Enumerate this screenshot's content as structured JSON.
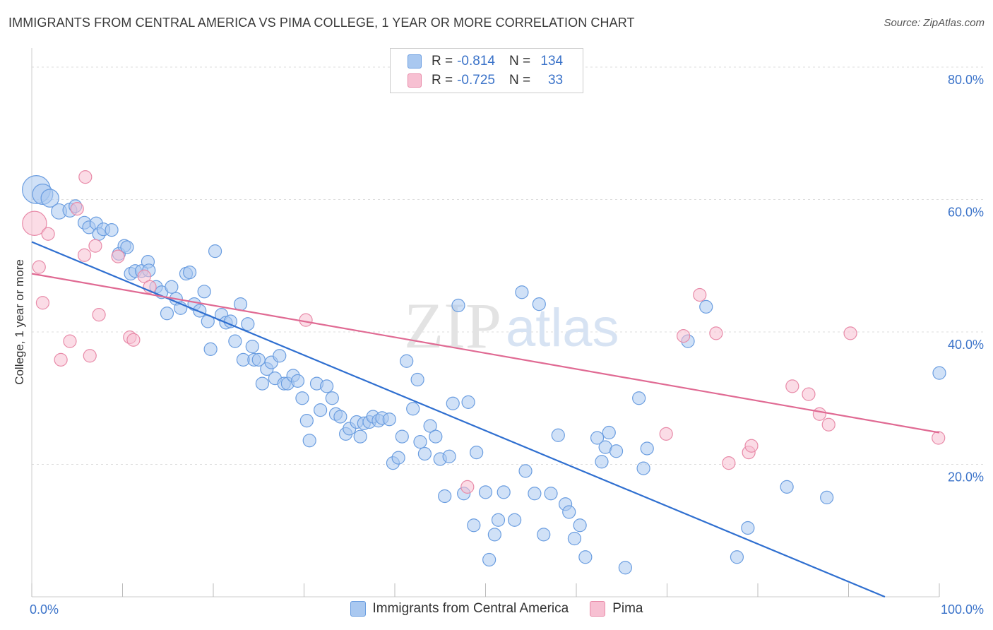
{
  "title": "IMMIGRANTS FROM CENTRAL AMERICA VS PIMA COLLEGE, 1 YEAR OR MORE CORRELATION CHART",
  "source": "Source: ZipAtlas.com",
  "watermark": {
    "zip": "ZIP",
    "atlas": "atlas"
  },
  "legend": {
    "rows": [
      {
        "r_label": "R =",
        "r_value": "-0.814",
        "n_label": "N =",
        "n_value": "134"
      },
      {
        "r_label": "R =",
        "r_value": "-0.725",
        "n_label": "N =",
        "n_value": "33"
      }
    ]
  },
  "bottom_legend": [
    "Immigrants from Central America",
    "Pima"
  ],
  "colors": {
    "blue_fill": "#a9c8f0",
    "blue_stroke": "#6a9de0",
    "blue_line": "#2f6fd0",
    "pink_fill": "#f7c0d2",
    "pink_stroke": "#e88aa8",
    "pink_line": "#e06a93",
    "tick_text": "#3b73c9",
    "grid": "#dddddd"
  },
  "chart_data": {
    "type": "scatter",
    "title": "IMMIGRANTS FROM CENTRAL AMERICA VS PIMA COLLEGE, 1 YEAR OR MORE CORRELATION CHART",
    "xlabel": "",
    "ylabel": "College, 1 year or more",
    "xlim": [
      0,
      100
    ],
    "ylim": [
      0,
      80
    ],
    "x_ticks": [
      "0.0%",
      "100.0%"
    ],
    "y_ticks": [
      "20.0%",
      "40.0%",
      "60.0%",
      "80.0%"
    ],
    "grid": true,
    "legend_position": "top-center",
    "series": [
      {
        "name": "Immigrants from Central America",
        "color": "#a9c8f0",
        "trend": {
          "x0": 0,
          "y0": 53.6,
          "x1": 94,
          "y1": 0
        },
        "points": [
          [
            0.5,
            61.5,
            2.2
          ],
          [
            1.2,
            60.8,
            1.6
          ],
          [
            2.0,
            60.2,
            1.4
          ],
          [
            3.0,
            58.2,
            1.2
          ],
          [
            4.2,
            58.4,
            1.1
          ],
          [
            4.8,
            59.0,
            1.0
          ],
          [
            5.8,
            56.5,
            1.0
          ],
          [
            6.3,
            55.8,
            1.0
          ],
          [
            7.1,
            56.4,
            1.0
          ],
          [
            7.4,
            54.8,
            1.0
          ],
          [
            7.9,
            55.5,
            1.0
          ],
          [
            8.8,
            55.4,
            1.0
          ],
          [
            9.6,
            51.8,
            1.0
          ],
          [
            10.2,
            53.0,
            1.0
          ],
          [
            10.5,
            52.8,
            1.0
          ],
          [
            10.9,
            48.8,
            1.0
          ],
          [
            11.4,
            49.2,
            1.0
          ],
          [
            12.1,
            49.2,
            1.0
          ],
          [
            12.8,
            50.6,
            1.0
          ],
          [
            12.9,
            49.3,
            1.0
          ],
          [
            13.7,
            46.8,
            1.0
          ],
          [
            14.3,
            46.0,
            1.0
          ],
          [
            14.9,
            42.8,
            1.0
          ],
          [
            15.4,
            46.8,
            1.0
          ],
          [
            15.9,
            45.0,
            1.0
          ],
          [
            16.4,
            43.6,
            1.0
          ],
          [
            17.0,
            48.8,
            1.0
          ],
          [
            17.4,
            49.0,
            1.0
          ],
          [
            17.9,
            44.2,
            1.0
          ],
          [
            18.5,
            43.2,
            1.0
          ],
          [
            19.0,
            46.1,
            1.0
          ],
          [
            19.4,
            41.6,
            1.0
          ],
          [
            19.7,
            37.4,
            1.0
          ],
          [
            20.2,
            52.2,
            1.0
          ],
          [
            20.9,
            42.6,
            1.0
          ],
          [
            21.4,
            41.4,
            1.0
          ],
          [
            21.9,
            41.6,
            1.0
          ],
          [
            22.4,
            38.6,
            1.0
          ],
          [
            23.0,
            44.2,
            1.0
          ],
          [
            23.3,
            35.8,
            1.0
          ],
          [
            23.8,
            41.2,
            1.0
          ],
          [
            24.3,
            37.8,
            1.0
          ],
          [
            24.5,
            35.8,
            1.0
          ],
          [
            25.0,
            35.8,
            1.0
          ],
          [
            25.4,
            32.2,
            1.0
          ],
          [
            25.9,
            34.4,
            1.0
          ],
          [
            26.4,
            35.4,
            1.0
          ],
          [
            26.8,
            33.0,
            1.0
          ],
          [
            27.3,
            36.4,
            1.0
          ],
          [
            27.8,
            32.2,
            1.0
          ],
          [
            28.2,
            32.2,
            1.0
          ],
          [
            28.8,
            33.4,
            1.0
          ],
          [
            29.3,
            32.6,
            1.0
          ],
          [
            29.8,
            30.0,
            1.0
          ],
          [
            30.3,
            26.6,
            1.0
          ],
          [
            30.6,
            23.6,
            1.0
          ],
          [
            31.4,
            32.2,
            1.0
          ],
          [
            31.8,
            28.2,
            1.0
          ],
          [
            32.5,
            31.8,
            1.0
          ],
          [
            33.1,
            30.0,
            1.0
          ],
          [
            33.5,
            27.6,
            1.0
          ],
          [
            34.0,
            27.2,
            1.0
          ],
          [
            34.6,
            24.6,
            1.0
          ],
          [
            35.0,
            25.4,
            1.0
          ],
          [
            35.8,
            26.4,
            1.0
          ],
          [
            36.2,
            24.2,
            1.0
          ],
          [
            36.6,
            26.2,
            1.0
          ],
          [
            37.2,
            26.4,
            1.0
          ],
          [
            37.6,
            27.2,
            1.0
          ],
          [
            38.2,
            26.6,
            1.0
          ],
          [
            38.6,
            27.0,
            1.0
          ],
          [
            39.4,
            26.8,
            1.0
          ],
          [
            39.8,
            20.2,
            1.0
          ],
          [
            40.4,
            21.0,
            1.0
          ],
          [
            40.8,
            24.2,
            1.0
          ],
          [
            41.3,
            35.6,
            1.0
          ],
          [
            42.0,
            28.4,
            1.0
          ],
          [
            42.5,
            32.8,
            1.0
          ],
          [
            42.8,
            23.4,
            1.0
          ],
          [
            43.3,
            21.6,
            1.0
          ],
          [
            43.9,
            25.8,
            1.0
          ],
          [
            44.5,
            24.2,
            1.0
          ],
          [
            45.0,
            20.8,
            1.0
          ],
          [
            45.5,
            15.2,
            1.0
          ],
          [
            46.0,
            21.2,
            1.0
          ],
          [
            46.4,
            29.2,
            1.0
          ],
          [
            47.0,
            44.0,
            1.0
          ],
          [
            47.6,
            15.6,
            1.0
          ],
          [
            48.1,
            29.4,
            1.0
          ],
          [
            48.7,
            10.8,
            1.0
          ],
          [
            49.0,
            21.8,
            1.0
          ],
          [
            50.0,
            15.8,
            1.0
          ],
          [
            50.4,
            5.6,
            1.0
          ],
          [
            51.0,
            9.4,
            1.0
          ],
          [
            51.4,
            11.6,
            1.0
          ],
          [
            52.0,
            15.8,
            1.0
          ],
          [
            53.2,
            11.6,
            1.0
          ],
          [
            54.0,
            46.0,
            1.0
          ],
          [
            54.4,
            19.0,
            1.0
          ],
          [
            55.4,
            15.6,
            1.0
          ],
          [
            55.9,
            44.2,
            1.0
          ],
          [
            56.4,
            9.4,
            1.0
          ],
          [
            57.2,
            15.6,
            1.0
          ],
          [
            58.0,
            24.4,
            1.0
          ],
          [
            58.8,
            14.0,
            1.0
          ],
          [
            59.2,
            12.8,
            1.0
          ],
          [
            59.8,
            8.8,
            1.0
          ],
          [
            60.4,
            10.8,
            1.0
          ],
          [
            61.0,
            6.0,
            1.0
          ],
          [
            62.3,
            24.0,
            1.0
          ],
          [
            62.8,
            20.4,
            1.0
          ],
          [
            63.2,
            22.6,
            1.0
          ],
          [
            63.6,
            24.8,
            1.0
          ],
          [
            64.4,
            22.0,
            1.0
          ],
          [
            65.4,
            4.4,
            1.0
          ],
          [
            66.9,
            30.0,
            1.0
          ],
          [
            67.4,
            19.4,
            1.0
          ],
          [
            67.8,
            22.4,
            1.0
          ],
          [
            72.3,
            38.6,
            1.0
          ],
          [
            74.3,
            43.8,
            1.0
          ],
          [
            77.7,
            6.0,
            1.0
          ],
          [
            78.9,
            10.4,
            1.0
          ],
          [
            83.2,
            16.6,
            1.0
          ],
          [
            87.6,
            15.0,
            1.0
          ],
          [
            100.0,
            33.8,
            1.0
          ]
        ]
      },
      {
        "name": "Pima",
        "color": "#f7c0d2",
        "trend": {
          "x0": 0,
          "y0": 48.8,
          "x1": 100,
          "y1": 24.8
        },
        "points": [
          [
            0.3,
            56.4,
            1.9
          ],
          [
            0.8,
            49.8,
            1.0
          ],
          [
            1.2,
            44.4,
            1.0
          ],
          [
            1.8,
            54.8,
            1.0
          ],
          [
            3.2,
            35.8,
            1.0
          ],
          [
            4.2,
            38.6,
            1.0
          ],
          [
            5.0,
            58.6,
            1.0
          ],
          [
            5.8,
            51.6,
            1.0
          ],
          [
            5.9,
            63.4,
            1.0
          ],
          [
            6.4,
            36.4,
            1.0
          ],
          [
            7.0,
            53.0,
            1.0
          ],
          [
            7.4,
            42.6,
            1.0
          ],
          [
            9.5,
            51.4,
            1.0
          ],
          [
            10.8,
            39.2,
            1.0
          ],
          [
            11.2,
            38.8,
            1.0
          ],
          [
            12.4,
            48.4,
            1.0
          ],
          [
            13.0,
            46.8,
            1.0
          ],
          [
            30.2,
            41.8,
            1.0
          ],
          [
            48.0,
            16.6,
            1.0
          ],
          [
            69.9,
            24.6,
            1.0
          ],
          [
            71.8,
            39.4,
            1.0
          ],
          [
            73.6,
            45.6,
            1.0
          ],
          [
            75.4,
            39.8,
            1.0
          ],
          [
            76.8,
            20.2,
            1.0
          ],
          [
            79.0,
            21.8,
            1.0
          ],
          [
            79.3,
            22.8,
            1.0
          ],
          [
            83.8,
            31.8,
            1.0
          ],
          [
            85.6,
            30.6,
            1.0
          ],
          [
            86.8,
            27.6,
            1.0
          ],
          [
            87.8,
            26.0,
            1.0
          ],
          [
            90.2,
            39.8,
            1.0
          ],
          [
            99.9,
            24.0,
            1.0
          ]
        ]
      }
    ]
  }
}
